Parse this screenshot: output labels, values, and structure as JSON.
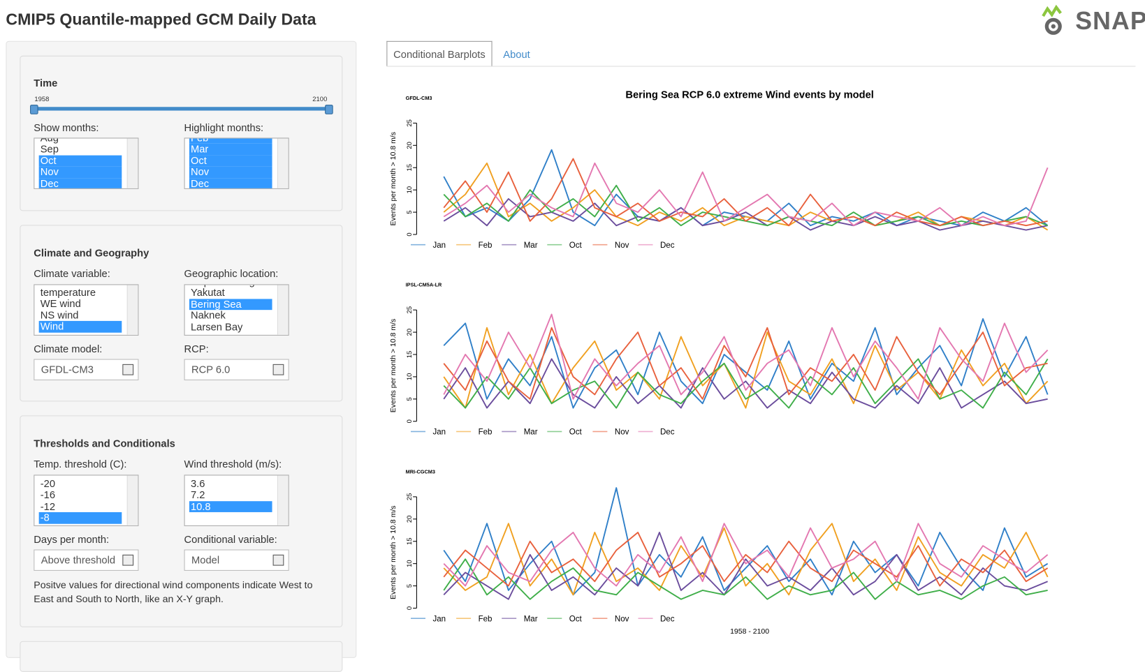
{
  "header": {
    "title": "CMIP5 Quantile-mapped GCM Daily Data",
    "logo": "SNAP"
  },
  "tabs": [
    "Conditional Barplots",
    "About"
  ],
  "sidebar": {
    "time": {
      "label": "Time",
      "min": 1958,
      "max": 2100
    },
    "show_months": {
      "label": "Show months:",
      "options": [
        {
          "text": "Aug",
          "selected": false
        },
        {
          "text": "Sep",
          "selected": false
        },
        {
          "text": "Oct",
          "selected": true
        },
        {
          "text": "Nov",
          "selected": true
        },
        {
          "text": "Dec",
          "selected": true
        }
      ]
    },
    "highlight_months": {
      "label": "Highlight months:",
      "options": [
        {
          "text": "Feb",
          "selected": true
        },
        {
          "text": "Mar",
          "selected": true
        },
        {
          "text": "Oct",
          "selected": true
        },
        {
          "text": "Nov",
          "selected": true
        },
        {
          "text": "Dec",
          "selected": true
        }
      ]
    },
    "climate_heading": "Climate and Geography",
    "climate_variable": {
      "label": "Climate variable:",
      "options": [
        {
          "text": "temperature",
          "selected": false
        },
        {
          "text": "WE wind",
          "selected": false
        },
        {
          "text": "NS wind",
          "selected": false
        },
        {
          "text": "Wind",
          "selected": true
        }
      ]
    },
    "location": {
      "label": "Geographic location:",
      "options": [
        {
          "text": "Cape Yakataga",
          "selected": false
        },
        {
          "text": "Yakutat",
          "selected": false
        },
        {
          "text": "Bering Sea",
          "selected": true
        },
        {
          "text": "Naknek",
          "selected": false
        },
        {
          "text": "Larsen Bay",
          "selected": false
        }
      ]
    },
    "climate_model": {
      "label": "Climate model:",
      "value": "GFDL-CM3"
    },
    "rcp": {
      "label": "RCP:",
      "value": "RCP 6.0"
    },
    "thresholds_heading": "Thresholds and Conditionals",
    "temp_threshold": {
      "label": "Temp. threshold (C):",
      "options": [
        {
          "text": "-20",
          "selected": false
        },
        {
          "text": "-16",
          "selected": false
        },
        {
          "text": "-12",
          "selected": false
        },
        {
          "text": "-8",
          "selected": true
        }
      ]
    },
    "wind_threshold": {
      "label": "Wind threshold (m/s):",
      "options": [
        {
          "text": "3.6",
          "selected": false
        },
        {
          "text": "7.2",
          "selected": false
        },
        {
          "text": "10.8",
          "selected": true
        }
      ]
    },
    "days_per_month": {
      "label": "Days per month:",
      "value": "Above threshold"
    },
    "conditional_variable": {
      "label": "Conditional variable:",
      "value": "Model"
    },
    "note": "Positve values for directional wind components indicate West to East and South to North, like an X-Y graph."
  },
  "chart_data": [
    {
      "type": "line",
      "title": "Bering Sea RCP 6.0 extreme Wind events by model",
      "subtitle": "GFDL-CM3",
      "ylabel": "Events per month > 10.8 m/s",
      "x": [
        1958,
        1963,
        1968,
        1973,
        1978,
        1983,
        1988,
        1993,
        1998,
        2003,
        2008,
        2013,
        2018,
        2023,
        2028,
        2033,
        2038,
        2043,
        2048,
        2053,
        2058,
        2063,
        2068,
        2073,
        2078,
        2083,
        2088,
        2093,
        2098
      ],
      "xlim": [
        1958,
        2100
      ],
      "ylim": [
        0,
        27
      ],
      "yticks": [
        0,
        5,
        10,
        15,
        20,
        25
      ],
      "series": [
        {
          "name": "Jan",
          "color": "#2f7fc8",
          "values": [
            13,
            4,
            6,
            3,
            8,
            19,
            5,
            2,
            9,
            4,
            3,
            6,
            2,
            5,
            4,
            3,
            7,
            2,
            4,
            3,
            5,
            2,
            4,
            3,
            2,
            5,
            3,
            6,
            2
          ]
        },
        {
          "name": "Feb",
          "color": "#f0a020",
          "values": [
            5,
            9,
            16,
            4,
            7,
            3,
            6,
            10,
            4,
            2,
            5,
            3,
            6,
            2,
            4,
            3,
            2,
            5,
            3,
            4,
            2,
            3,
            5,
            2,
            4,
            3,
            2,
            4,
            1
          ]
        },
        {
          "name": "Mar",
          "color": "#6a4c9c",
          "values": [
            3,
            6,
            2,
            8,
            4,
            5,
            3,
            7,
            2,
            4,
            3,
            6,
            2,
            3,
            5,
            2,
            4,
            1,
            3,
            2,
            4,
            2,
            3,
            1,
            2,
            3,
            2,
            1,
            2
          ]
        },
        {
          "name": "Oct",
          "color": "#3fae49",
          "values": [
            9,
            4,
            7,
            3,
            10,
            5,
            8,
            4,
            11,
            3,
            6,
            2,
            5,
            4,
            3,
            2,
            4,
            3,
            2,
            5,
            2,
            3,
            4,
            2,
            3,
            2,
            3,
            4,
            2
          ]
        },
        {
          "name": "Nov",
          "color": "#e8603c",
          "values": [
            6,
            12,
            5,
            14,
            3,
            8,
            17,
            6,
            4,
            7,
            3,
            5,
            4,
            8,
            3,
            6,
            2,
            9,
            3,
            4,
            2,
            5,
            3,
            2,
            4,
            2,
            3,
            2,
            3
          ]
        },
        {
          "name": "Dec",
          "color": "#e377b0",
          "values": [
            4,
            7,
            11,
            5,
            9,
            6,
            4,
            16,
            7,
            5,
            10,
            4,
            14,
            3,
            6,
            9,
            4,
            3,
            7,
            2,
            5,
            4,
            3,
            6,
            2,
            4,
            2,
            3,
            15
          ]
        }
      ]
    },
    {
      "type": "line",
      "subtitle": "IPSL-CM5A-LR",
      "ylabel": "Events per month > 10.8 m/s",
      "x": [
        1958,
        1963,
        1968,
        1973,
        1978,
        1983,
        1988,
        1993,
        1998,
        2003,
        2008,
        2013,
        2018,
        2023,
        2028,
        2033,
        2038,
        2043,
        2048,
        2053,
        2058,
        2063,
        2068,
        2073,
        2078,
        2083,
        2088,
        2093,
        2098
      ],
      "xlim": [
        1958,
        2100
      ],
      "ylim": [
        0,
        27
      ],
      "yticks": [
        0,
        5,
        10,
        15,
        20,
        25
      ],
      "series": [
        {
          "name": "Jan",
          "color": "#2f7fc8",
          "values": [
            17,
            22,
            5,
            14,
            8,
            19,
            3,
            12,
            16,
            6,
            20,
            9,
            4,
            15,
            11,
            7,
            18,
            5,
            13,
            9,
            21,
            6,
            12,
            17,
            8,
            23,
            10,
            19,
            6
          ]
        },
        {
          "name": "Feb",
          "color": "#f0a020",
          "values": [
            10,
            3,
            21,
            6,
            15,
            4,
            12,
            18,
            7,
            11,
            5,
            19,
            8,
            13,
            3,
            20,
            9,
            6,
            14,
            4,
            17,
            7,
            11,
            5,
            16,
            8,
            13,
            4,
            9
          ]
        },
        {
          "name": "Mar",
          "color": "#6a4c9c",
          "values": [
            5,
            12,
            3,
            9,
            4,
            14,
            6,
            3,
            10,
            4,
            8,
            3,
            12,
            5,
            9,
            3,
            7,
            4,
            11,
            5,
            3,
            8,
            4,
            12,
            3,
            6,
            9,
            4,
            5
          ]
        },
        {
          "name": "Oct",
          "color": "#3fae49",
          "values": [
            8,
            3,
            10,
            5,
            12,
            4,
            7,
            9,
            3,
            11,
            6,
            4,
            9,
            13,
            5,
            8,
            3,
            10,
            6,
            12,
            4,
            9,
            14,
            5,
            7,
            3,
            11,
            6,
            14
          ]
        },
        {
          "name": "Nov",
          "color": "#e8603c",
          "values": [
            13,
            7,
            18,
            9,
            5,
            21,
            10,
            6,
            14,
            20,
            8,
            12,
            5,
            17,
            10,
            21,
            6,
            12,
            9,
            15,
            7,
            19,
            11,
            6,
            13,
            20,
            8,
            12,
            13
          ]
        },
        {
          "name": "Dec",
          "color": "#e377b0",
          "values": [
            6,
            15,
            9,
            20,
            12,
            24,
            5,
            14,
            8,
            13,
            17,
            6,
            11,
            19,
            7,
            13,
            16,
            8,
            21,
            10,
            18,
            12,
            5,
            21,
            14,
            9,
            22,
            11,
            16
          ]
        }
      ]
    },
    {
      "type": "line",
      "subtitle": "MRI-CGCM3",
      "ylabel": "Events per month > 10.8 m/s",
      "xlabel": "1958 - 2100",
      "x": [
        1958,
        1963,
        1968,
        1973,
        1978,
        1983,
        1988,
        1993,
        1998,
        2003,
        2008,
        2013,
        2018,
        2023,
        2028,
        2033,
        2038,
        2043,
        2048,
        2053,
        2058,
        2063,
        2068,
        2073,
        2078,
        2083,
        2088,
        2093,
        2098
      ],
      "xlim": [
        1958,
        2100
      ],
      "ylim": [
        0,
        27
      ],
      "yticks": [
        0,
        5,
        10,
        15,
        20,
        25
      ],
      "series": [
        {
          "name": "Jan",
          "color": "#2f7fc8",
          "values": [
            13,
            6,
            19,
            4,
            10,
            15,
            3,
            8,
            27,
            5,
            12,
            7,
            16,
            4,
            9,
            14,
            6,
            11,
            3,
            15,
            8,
            12,
            5,
            17,
            9,
            4,
            18,
            7,
            10
          ]
        },
        {
          "name": "Feb",
          "color": "#f0a020",
          "values": [
            9,
            4,
            7,
            19,
            5,
            11,
            3,
            17,
            6,
            9,
            4,
            14,
            7,
            18,
            5,
            10,
            3,
            13,
            19,
            6,
            11,
            4,
            16,
            8,
            5,
            12,
            9,
            17,
            7
          ]
        },
        {
          "name": "Mar",
          "color": "#6a4c9c",
          "values": [
            3,
            8,
            5,
            2,
            12,
            4,
            7,
            3,
            9,
            5,
            17,
            4,
            8,
            3,
            11,
            5,
            7,
            4,
            9,
            3,
            6,
            12,
            4,
            7,
            3,
            9,
            5,
            4,
            6
          ]
        },
        {
          "name": "Oct",
          "color": "#3fae49",
          "values": [
            4,
            11,
            3,
            7,
            2,
            6,
            9,
            4,
            3,
            8,
            5,
            2,
            4,
            3,
            7,
            2,
            5,
            3,
            4,
            8,
            2,
            6,
            3,
            4,
            2,
            5,
            7,
            3,
            4
          ]
        },
        {
          "name": "Nov",
          "color": "#e8603c",
          "values": [
            7,
            13,
            9,
            5,
            15,
            8,
            11,
            6,
            13,
            17,
            7,
            10,
            14,
            6,
            12,
            8,
            15,
            9,
            6,
            13,
            10,
            7,
            14,
            5,
            11,
            8,
            13,
            6,
            9
          ]
        },
        {
          "name": "Dec",
          "color": "#e377b0",
          "values": [
            10,
            5,
            14,
            8,
            6,
            13,
            17,
            9,
            5,
            12,
            8,
            16,
            6,
            19,
            10,
            13,
            7,
            18,
            9,
            11,
            15,
            6,
            19,
            10,
            7,
            14,
            11,
            8,
            12
          ]
        }
      ]
    }
  ]
}
